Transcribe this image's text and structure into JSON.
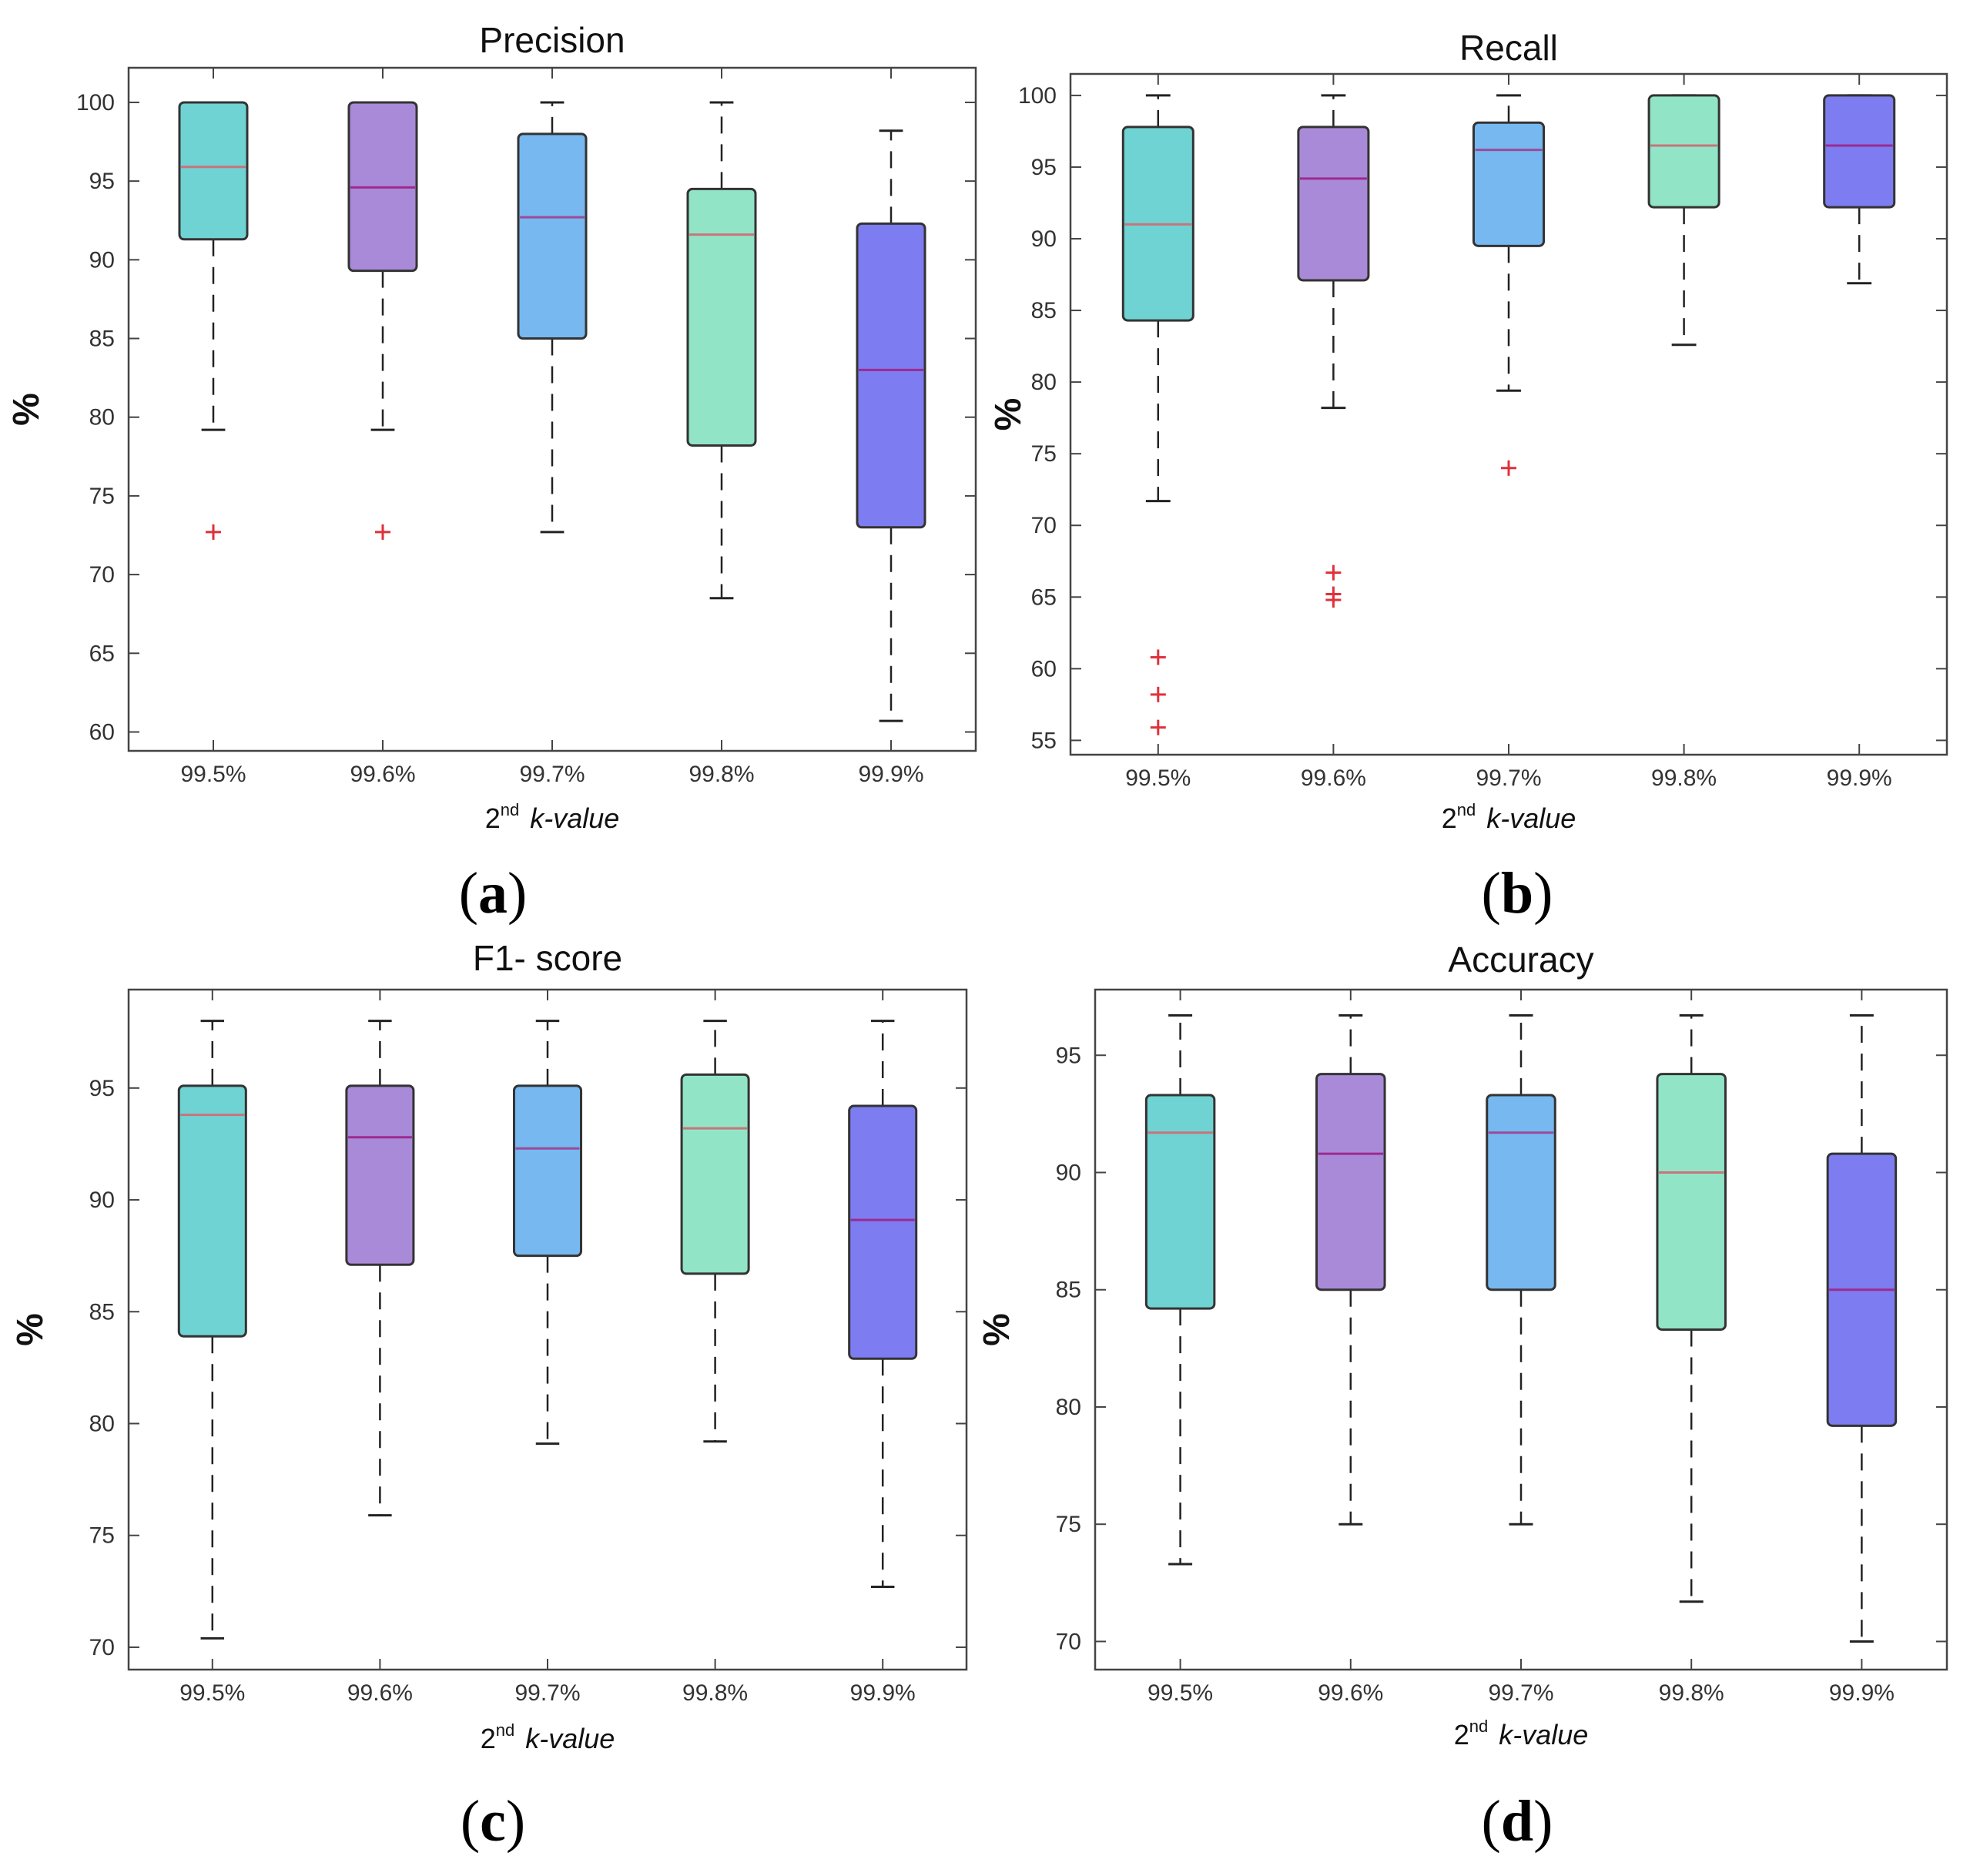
{
  "colors": {
    "box_fill": [
      "#6fd3d3",
      "#a98ad8",
      "#76b8ef",
      "#92e4c7",
      "#7d7cf0"
    ],
    "median": [
      "#c8747a",
      "#9c2a8f",
      "#9c4a9a",
      "#c8747a",
      "#9c2a8f"
    ],
    "box_edge": "#333333",
    "outlier": "#e0303a"
  },
  "chart_data": [
    {
      "type": "boxplot",
      "panel": "(a)",
      "panel_letter": "a",
      "title": "Precision",
      "ylabel": "%",
      "xlabel": {
        "sup": "nd",
        "text": "k-value",
        "ordinal": "2"
      },
      "categories": [
        "99.5%",
        "99.6%",
        "99.7%",
        "99.8%",
        "99.9%"
      ],
      "ylim": [
        58.8,
        102.2
      ],
      "yticks": [
        60,
        65,
        70,
        75,
        80,
        85,
        90,
        95,
        100
      ],
      "boxes": [
        {
          "whisker_low": 79.2,
          "q1": 91.3,
          "median": 95.9,
          "q3": 100,
          "whisker_high": 100,
          "outliers": [
            72.7
          ]
        },
        {
          "whisker_low": 79.2,
          "q1": 89.3,
          "median": 94.6,
          "q3": 100,
          "whisker_high": 100,
          "outliers": [
            72.7
          ]
        },
        {
          "whisker_low": 72.7,
          "q1": 85.0,
          "median": 92.7,
          "q3": 98.0,
          "whisker_high": 100,
          "outliers": []
        },
        {
          "whisker_low": 68.5,
          "q1": 78.2,
          "median": 91.6,
          "q3": 94.5,
          "whisker_high": 100,
          "outliers": []
        },
        {
          "whisker_low": 60.7,
          "q1": 73.0,
          "median": 83.0,
          "q3": 92.3,
          "whisker_high": 98.2,
          "outliers": []
        }
      ]
    },
    {
      "type": "boxplot",
      "panel": "(b)",
      "panel_letter": "b",
      "title": "Recall",
      "ylabel": "%",
      "xlabel": {
        "sup": "nd",
        "text": "k-value",
        "ordinal": "2"
      },
      "categories": [
        "99.5%",
        "99.6%",
        "99.7%",
        "99.8%",
        "99.9%"
      ],
      "ylim": [
        54.0,
        101.5
      ],
      "yticks": [
        55,
        60,
        65,
        70,
        75,
        80,
        85,
        90,
        95,
        100
      ],
      "boxes": [
        {
          "whisker_low": 71.7,
          "q1": 84.3,
          "median": 91.0,
          "q3": 97.8,
          "whisker_high": 100,
          "outliers": [
            60.8,
            58.2,
            55.9
          ]
        },
        {
          "whisker_low": 78.2,
          "q1": 87.1,
          "median": 94.2,
          "q3": 97.8,
          "whisker_high": 100,
          "outliers": [
            66.7,
            65.2,
            64.8
          ]
        },
        {
          "whisker_low": 79.4,
          "q1": 89.5,
          "median": 96.2,
          "q3": 98.1,
          "whisker_high": 100,
          "outliers": [
            74.0
          ]
        },
        {
          "whisker_low": 82.6,
          "q1": 92.2,
          "median": 96.5,
          "q3": 100,
          "whisker_high": 100,
          "outliers": []
        },
        {
          "whisker_low": 86.9,
          "q1": 92.2,
          "median": 96.5,
          "q3": 100,
          "whisker_high": 100,
          "outliers": []
        }
      ]
    },
    {
      "type": "boxplot",
      "panel": "(c)",
      "panel_letter": "c",
      "title": "F1- score",
      "ylabel": "%",
      "xlabel": {
        "sup": "nd",
        "text": "k-value",
        "ordinal": "2"
      },
      "categories": [
        "99.5%",
        "99.6%",
        "99.7%",
        "99.8%",
        "99.9%"
      ],
      "ylim": [
        69.0,
        99.4
      ],
      "yticks": [
        70,
        75,
        80,
        85,
        90,
        95
      ],
      "boxes": [
        {
          "whisker_low": 70.4,
          "q1": 83.9,
          "median": 93.8,
          "q3": 95.1,
          "whisker_high": 98.0,
          "outliers": []
        },
        {
          "whisker_low": 75.9,
          "q1": 87.1,
          "median": 92.8,
          "q3": 95.1,
          "whisker_high": 98.0,
          "outliers": []
        },
        {
          "whisker_low": 79.1,
          "q1": 87.5,
          "median": 92.3,
          "q3": 95.1,
          "whisker_high": 98.0,
          "outliers": []
        },
        {
          "whisker_low": 79.2,
          "q1": 86.7,
          "median": 93.2,
          "q3": 95.6,
          "whisker_high": 98.0,
          "outliers": []
        },
        {
          "whisker_low": 72.7,
          "q1": 82.9,
          "median": 89.1,
          "q3": 94.2,
          "whisker_high": 98.0,
          "outliers": []
        }
      ]
    },
    {
      "type": "boxplot",
      "panel": "(d)",
      "panel_letter": "d",
      "title": "Accuracy",
      "ylabel": "%",
      "xlabel": {
        "sup": "nd",
        "text": "k-value",
        "ordinal": "2"
      },
      "categories": [
        "99.5%",
        "99.6%",
        "99.7%",
        "99.8%",
        "99.9%"
      ],
      "ylim": [
        68.8,
        97.8
      ],
      "yticks": [
        70,
        75,
        80,
        85,
        90,
        95
      ],
      "boxes": [
        {
          "whisker_low": 73.3,
          "q1": 84.2,
          "median": 91.7,
          "q3": 93.3,
          "whisker_high": 96.7,
          "outliers": []
        },
        {
          "whisker_low": 75.0,
          "q1": 85.0,
          "median": 90.8,
          "q3": 94.2,
          "whisker_high": 96.7,
          "outliers": []
        },
        {
          "whisker_low": 75.0,
          "q1": 85.0,
          "median": 91.7,
          "q3": 93.3,
          "whisker_high": 96.7,
          "outliers": []
        },
        {
          "whisker_low": 71.7,
          "q1": 83.3,
          "median": 90.0,
          "q3": 94.2,
          "whisker_high": 96.7,
          "outliers": []
        },
        {
          "whisker_low": 70.0,
          "q1": 79.2,
          "median": 85.0,
          "q3": 90.8,
          "whisker_high": 96.7,
          "outliers": []
        }
      ]
    }
  ]
}
